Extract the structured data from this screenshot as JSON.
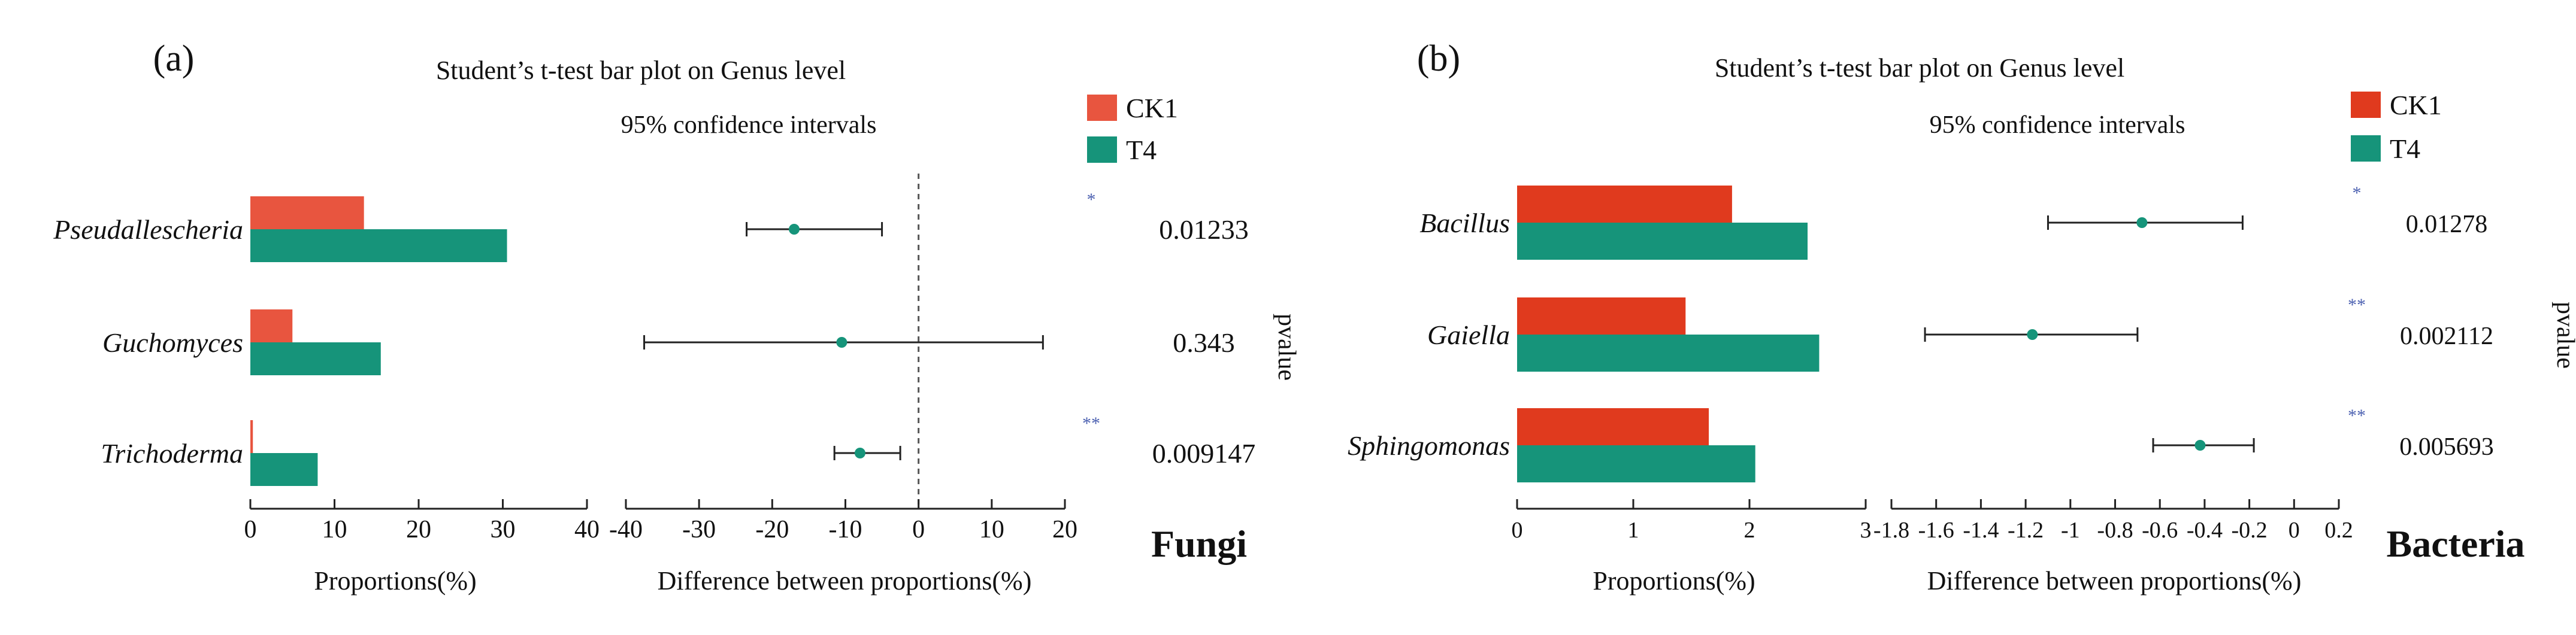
{
  "colors": {
    "ck1_a": "#e8553f",
    "t4": "#16947a",
    "ck1_b": "#e03a1e",
    "axis": "#222222",
    "star": "#4a5fb0"
  },
  "chart_data": [
    {
      "type": "bar",
      "panel_label": "(a)",
      "title": "Student’s t-test bar plot on Genus level",
      "ci_title": "95% confidence intervals",
      "categories": [
        "Pseudallescheria",
        "Guchomyces",
        "Trichoderma"
      ],
      "series": [
        {
          "name": "CK1",
          "values": [
            13.5,
            5,
            0.3
          ]
        },
        {
          "name": "T4",
          "values": [
            30.5,
            15.5,
            8
          ]
        }
      ],
      "xlabel": "Proportions(%)",
      "xlim": [
        0,
        40
      ],
      "xticks": [
        "0",
        "10",
        "20",
        "30",
        "40"
      ],
      "difference": {
        "xlabel": "Difference between proportions(%)",
        "xlim": [
          -40,
          20
        ],
        "xticks": [
          "-40",
          "-30",
          "-20",
          "-10",
          "0",
          "10",
          "20"
        ],
        "estimates": [
          -17,
          -10.5,
          -8
        ],
        "lower": [
          -23.5,
          -37.5,
          -11.5
        ],
        "upper": [
          -5,
          17,
          -2.5
        ],
        "reference_line": 0
      },
      "significance": [
        "*",
        "",
        "**"
      ],
      "pvalues": [
        "0.01233",
        "0.343",
        "0.009147"
      ],
      "pvalue_label": "pvalue",
      "group_label": "Fungi"
    },
    {
      "type": "bar",
      "panel_label": "(b)",
      "title": "Student’s t-test bar plot on Genus level",
      "ci_title": "95% confidence intervals",
      "categories": [
        "Bacillus",
        "Gaiella",
        "Sphingomonas"
      ],
      "series": [
        {
          "name": "CK1",
          "values": [
            1.85,
            1.45,
            1.65
          ]
        },
        {
          "name": "T4",
          "values": [
            2.5,
            2.6,
            2.05
          ]
        }
      ],
      "xlabel": "Proportions(%)",
      "xlim": [
        0,
        3
      ],
      "xticks": [
        "0",
        "1",
        "2",
        "3"
      ],
      "difference": {
        "xlabel": "Difference between proportions(%)",
        "xlim": [
          -1.8,
          0.2
        ],
        "xticks": [
          "-1.8",
          "-1.6",
          "-1.4",
          "-1.2",
          "-1",
          "-0.8",
          "-0.6",
          "-0.4",
          "-0.2",
          "0",
          "0.2"
        ],
        "estimates": [
          -0.68,
          -1.17,
          -0.42
        ],
        "lower": [
          -1.1,
          -1.65,
          -0.63
        ],
        "upper": [
          -0.23,
          -0.7,
          -0.18
        ]
      },
      "significance": [
        "*",
        "**",
        "**"
      ],
      "pvalues": [
        "0.01278",
        "0.002112",
        "0.005693"
      ],
      "pvalue_label": "pvalue",
      "group_label": "Bacteria"
    }
  ]
}
